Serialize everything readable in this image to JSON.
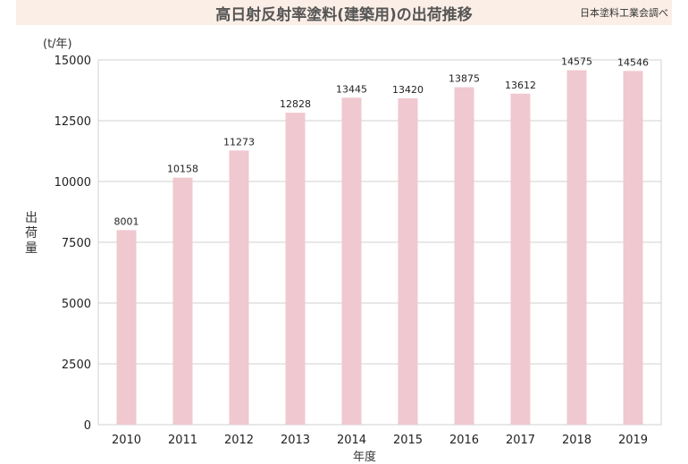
{
  "header": {
    "title": "高日射反射率塗料(建築用)の出荷推移",
    "source": "日本塗料工業会調べ"
  },
  "chart_data": {
    "type": "bar",
    "title": "高日射反射率塗料(建築用)の出荷推移",
    "unit": "(t/年)",
    "ylabel": "出荷量",
    "xlabel": "年度",
    "categories": [
      "2010",
      "2011",
      "2012",
      "2013",
      "2014",
      "2015",
      "2016",
      "2017",
      "2018",
      "2019"
    ],
    "values": [
      8001,
      10158,
      11273,
      12828,
      13445,
      13420,
      13875,
      13612,
      14575,
      14546
    ],
    "ylim": [
      0,
      15000
    ],
    "yticks": [
      0,
      2500,
      5000,
      7500,
      10000,
      12500,
      15000
    ],
    "grid": true,
    "bar_color": "#f0c8cf",
    "grid_color": "#d0d0d0"
  }
}
